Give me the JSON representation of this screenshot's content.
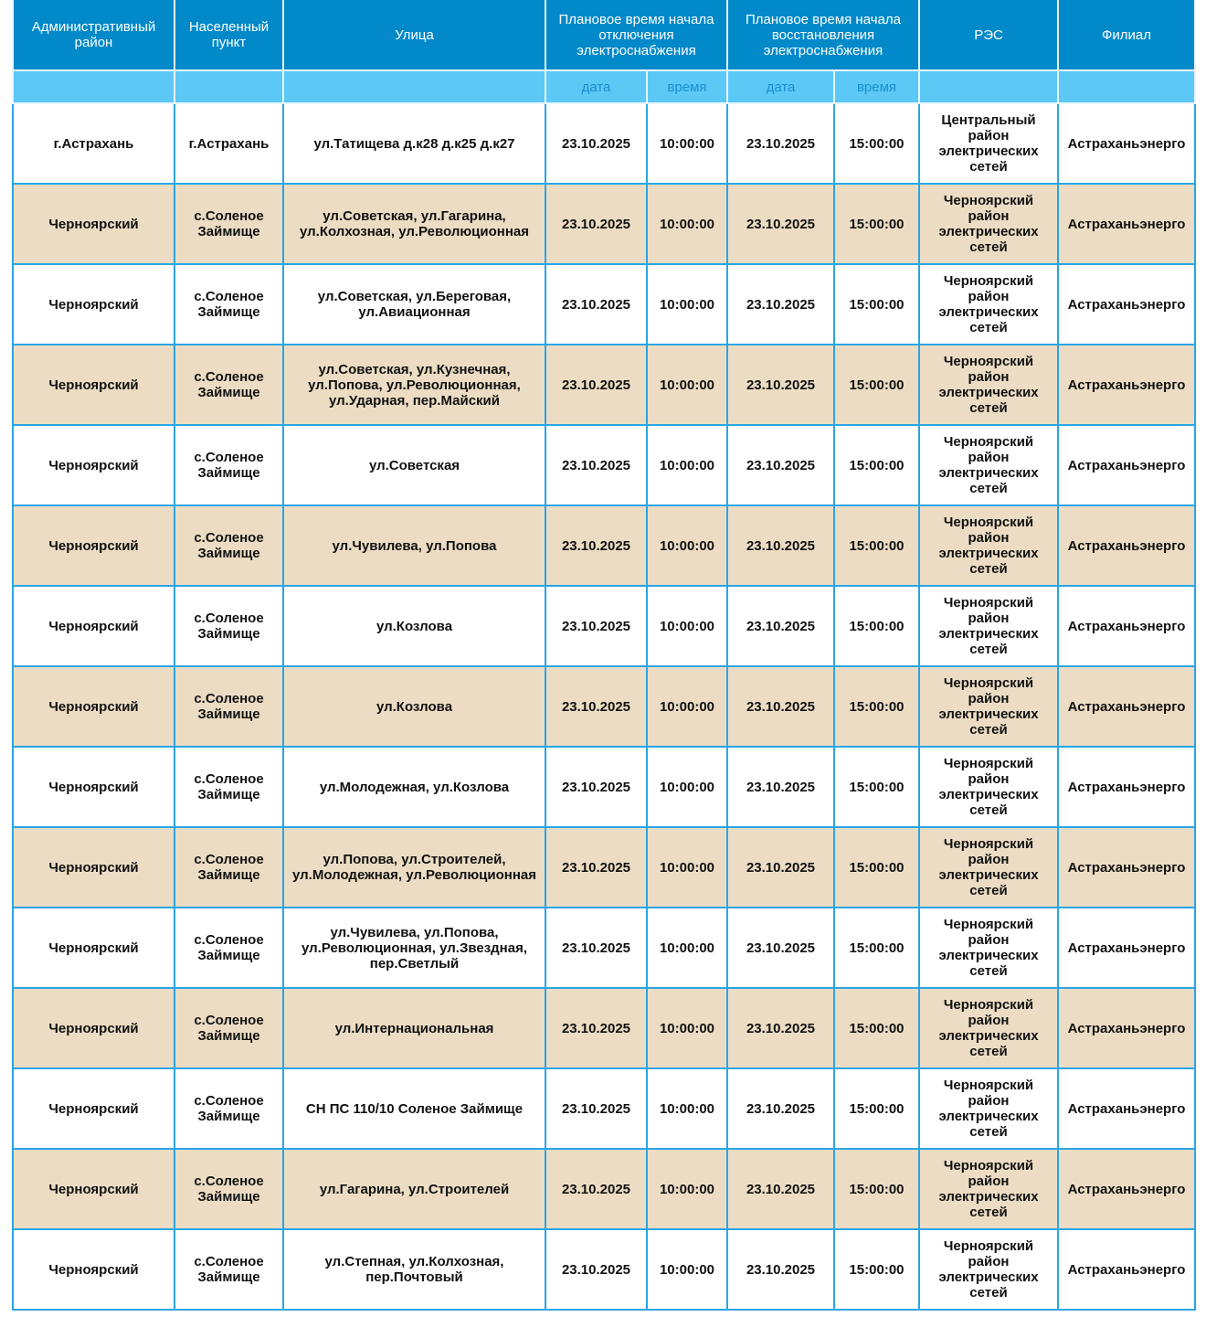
{
  "header": {
    "columns": [
      "Административный район",
      "Населенный пункт",
      "Улица",
      "Плановое время начала отключения электроснабжения",
      "Плановое время начала восстановления электроснабжения",
      "РЭС",
      "Филиал"
    ],
    "sub": {
      "date": "дата",
      "time": "время"
    }
  },
  "colors": {
    "header": "#0289c9",
    "subheader": "#5bc8f5",
    "alt_row": "#ecdcc3",
    "border": "#2aa5e6"
  },
  "rows": [
    [
      "г.Астрахань",
      "г.Астрахань",
      "ул.Татищева д.к28 д.к25 д.к27",
      "23.10.2025",
      "10:00:00",
      "23.10.2025",
      "15:00:00",
      "Центральный район электрических сетей",
      "Астраханьэнерго"
    ],
    [
      "Черноярский",
      "с.Соленое Займище",
      "ул.Советская, ул.Гагарина, ул.Колхозная, ул.Революционная",
      "23.10.2025",
      "10:00:00",
      "23.10.2025",
      "15:00:00",
      "Черноярский район электрических сетей",
      "Астраханьэнерго"
    ],
    [
      "Черноярский",
      "с.Соленое Займище",
      "ул.Советская, ул.Береговая, ул.Авиационная",
      "23.10.2025",
      "10:00:00",
      "23.10.2025",
      "15:00:00",
      "Черноярский район электрических сетей",
      "Астраханьэнерго"
    ],
    [
      "Черноярский",
      "с.Соленое Займище",
      "ул.Советская, ул.Кузнечная, ул.Попова, ул.Революционная, ул.Ударная, пер.Майский",
      "23.10.2025",
      "10:00:00",
      "23.10.2025",
      "15:00:00",
      "Черноярский район электрических сетей",
      "Астраханьэнерго"
    ],
    [
      "Черноярский",
      "с.Соленое Займище",
      "ул.Советская",
      "23.10.2025",
      "10:00:00",
      "23.10.2025",
      "15:00:00",
      "Черноярский район электрических сетей",
      "Астраханьэнерго"
    ],
    [
      "Черноярский",
      "с.Соленое Займище",
      "ул.Чувилева, ул.Попова",
      "23.10.2025",
      "10:00:00",
      "23.10.2025",
      "15:00:00",
      "Черноярский район электрических сетей",
      "Астраханьэнерго"
    ],
    [
      "Черноярский",
      "с.Соленое Займище",
      "ул.Козлова",
      "23.10.2025",
      "10:00:00",
      "23.10.2025",
      "15:00:00",
      "Черноярский район электрических сетей",
      "Астраханьэнерго"
    ],
    [
      "Черноярский",
      "с.Соленое Займище",
      "ул.Козлова",
      "23.10.2025",
      "10:00:00",
      "23.10.2025",
      "15:00:00",
      "Черноярский район электрических сетей",
      "Астраханьэнерго"
    ],
    [
      "Черноярский",
      "с.Соленое Займище",
      "ул.Молодежная, ул.Козлова",
      "23.10.2025",
      "10:00:00",
      "23.10.2025",
      "15:00:00",
      "Черноярский район электрических сетей",
      "Астраханьэнерго"
    ],
    [
      "Черноярский",
      "с.Соленое Займище",
      "ул.Попова, ул.Строителей, ул.Молодежная, ул.Революционная",
      "23.10.2025",
      "10:00:00",
      "23.10.2025",
      "15:00:00",
      "Черноярский район электрических сетей",
      "Астраханьэнерго"
    ],
    [
      "Черноярский",
      "с.Соленое Займище",
      "ул.Чувилева, ул.Попова, ул.Революционная, ул.Звездная, пер.Светлый",
      "23.10.2025",
      "10:00:00",
      "23.10.2025",
      "15:00:00",
      "Черноярский район электрических сетей",
      "Астраханьэнерго"
    ],
    [
      "Черноярский",
      "с.Соленое Займище",
      "ул.Интернациональная",
      "23.10.2025",
      "10:00:00",
      "23.10.2025",
      "15:00:00",
      "Черноярский район электрических сетей",
      "Астраханьэнерго"
    ],
    [
      "Черноярский",
      "с.Соленое Займище",
      "СН ПС 110/10 Соленое Займище",
      "23.10.2025",
      "10:00:00",
      "23.10.2025",
      "15:00:00",
      "Черноярский район электрических сетей",
      "Астраханьэнерго"
    ],
    [
      "Черноярский",
      "с.Соленое Займище",
      "ул.Гагарина, ул.Строителей",
      "23.10.2025",
      "10:00:00",
      "23.10.2025",
      "15:00:00",
      "Черноярский район электрических сетей",
      "Астраханьэнерго"
    ],
    [
      "Черноярский",
      "с.Соленое Займище",
      "ул.Степная, ул.Колхозная, пер.Почтовый",
      "23.10.2025",
      "10:00:00",
      "23.10.2025",
      "15:00:00",
      "Черноярский район электрических сетей",
      "Астраханьэнерго"
    ]
  ]
}
